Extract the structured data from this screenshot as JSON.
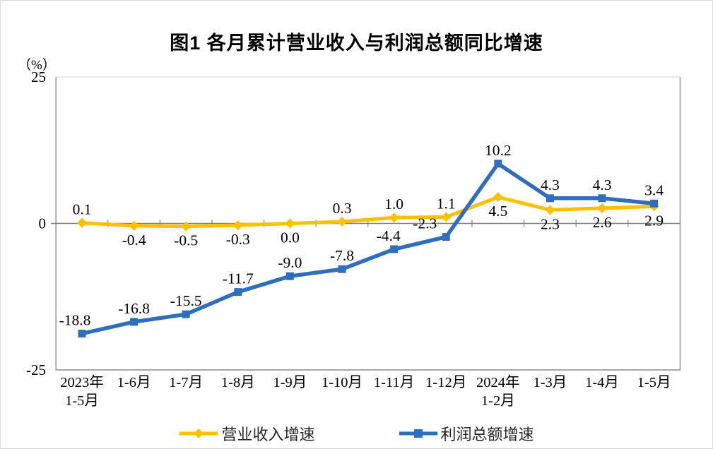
{
  "title": "图1  各月累计营业收入与利润总额同比增速",
  "y_axis": {
    "unit": "（%）",
    "tick_labels": [
      "25",
      "0",
      "-25"
    ],
    "tick_values": [
      25,
      0,
      -25
    ]
  },
  "chart_data": {
    "type": "line",
    "title": "图1  各月累计营业收入与利润总额同比增速",
    "ylabel": "（%）",
    "ylim": [
      -25,
      25
    ],
    "y_ticks": [
      25,
      0,
      -25
    ],
    "grid": false,
    "legend_position": "bottom",
    "categories": [
      "2023年\n1-5月",
      "1-6月",
      "1-7月",
      "1-8月",
      "1-9月",
      "1-10月",
      "1-11月",
      "1-12月",
      "2024年\n1-2月",
      "1-3月",
      "1-4月",
      "1-5月"
    ],
    "series": [
      {
        "name": "营业收入增速",
        "color": "#FFC000",
        "marker": "diamond",
        "values": [
          0.1,
          -0.4,
          -0.5,
          -0.3,
          0.0,
          0.3,
          1.0,
          1.1,
          4.5,
          2.3,
          2.6,
          2.9
        ],
        "label_side": [
          "above",
          "below",
          "below",
          "below",
          "below",
          "above",
          "above",
          "above",
          "below",
          "below",
          "below",
          "below"
        ]
      },
      {
        "name": "利润总额增速",
        "color": "#2F6EBE",
        "marker": "square",
        "values": [
          -18.8,
          -16.8,
          -15.5,
          -11.7,
          -9.0,
          -7.8,
          -4.4,
          -2.3,
          10.2,
          4.3,
          4.3,
          3.4
        ],
        "label_side": [
          "above",
          "above",
          "above",
          "above",
          "above",
          "above",
          "above",
          "above",
          "above",
          "above",
          "above",
          "above"
        ]
      }
    ]
  }
}
